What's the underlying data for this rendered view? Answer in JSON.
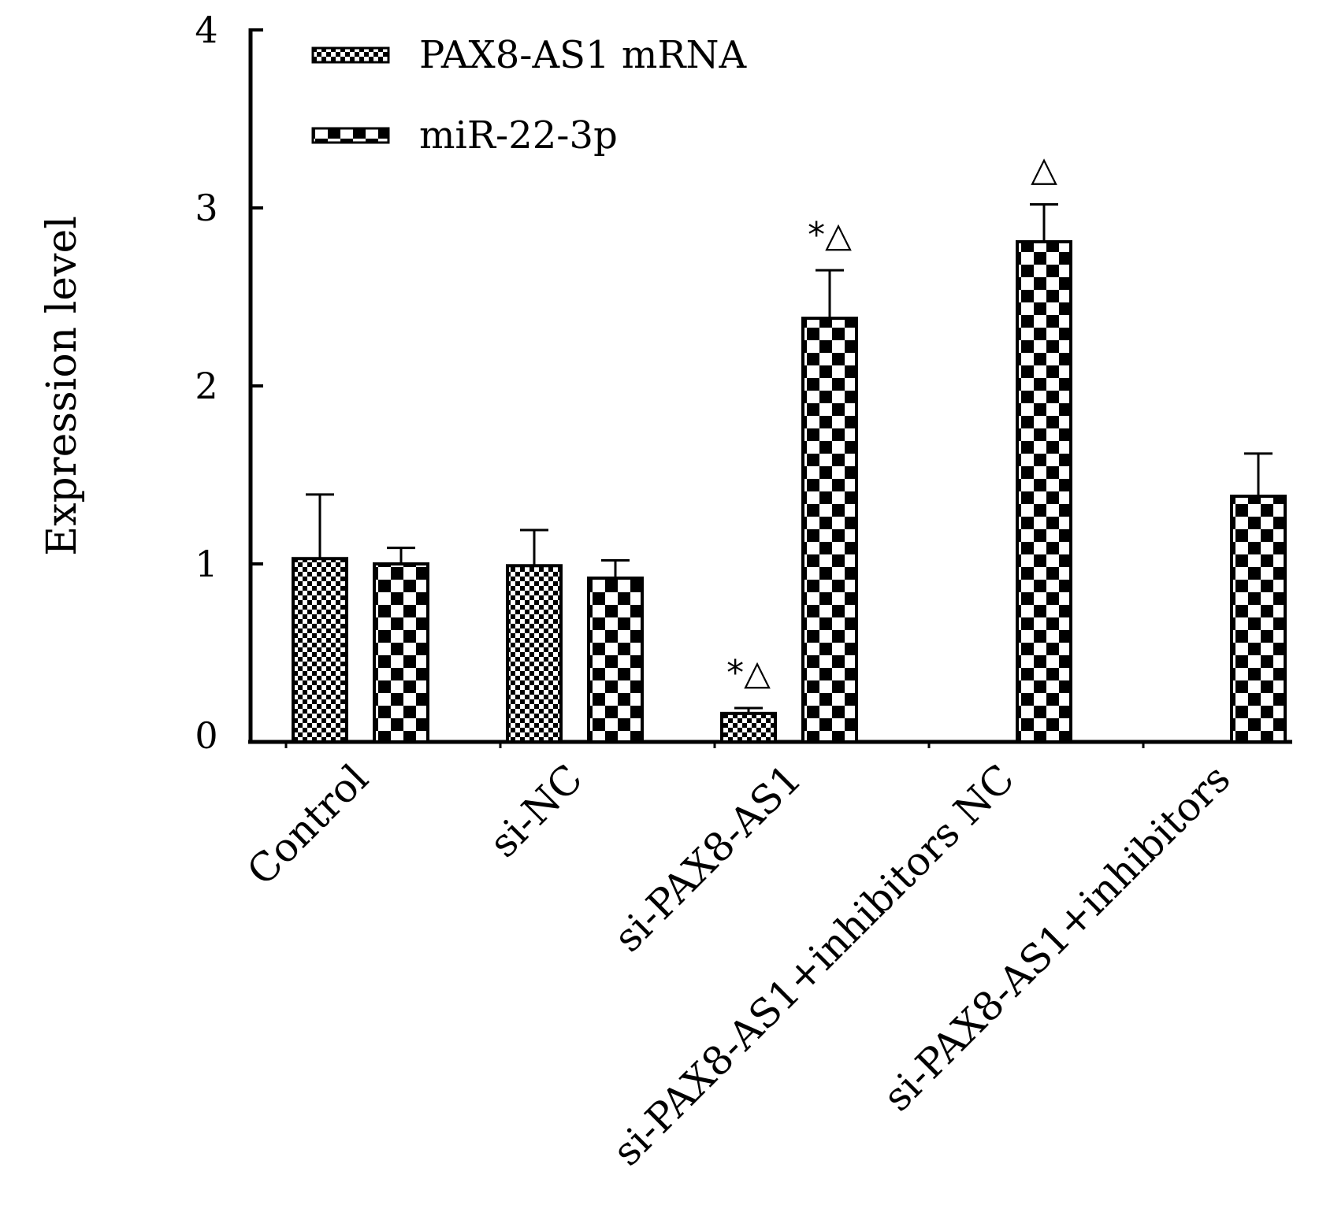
{
  "chart_data": {
    "type": "bar",
    "ylabel": "Expression level",
    "ylim": [
      0,
      4
    ],
    "yticks": [
      "0",
      "1",
      "2",
      "3",
      "4"
    ],
    "categories": [
      "Control",
      "si-NC",
      "si-PAX8-AS1",
      "si-PAX8-AS1+inhibitors NC",
      "si-PAX8-AS1+inhibitors"
    ],
    "legend_position": "top-left",
    "series": [
      {
        "name": "PAX8-AS1 mRNA",
        "pattern": "fine-checker",
        "values": [
          1.03,
          0.99,
          0.16,
          null,
          null
        ],
        "errors": [
          0.36,
          0.2,
          0.03,
          null,
          null
        ]
      },
      {
        "name": "miR-22-3p",
        "pattern": "coarse-checker",
        "values": [
          1.0,
          0.92,
          2.38,
          2.81,
          1.38
        ],
        "errors": [
          0.09,
          0.1,
          0.27,
          0.21,
          0.24
        ]
      }
    ],
    "annotations": [
      {
        "text": "*△",
        "category": 2,
        "series": 0
      },
      {
        "text": "*△",
        "category": 2,
        "series": 1
      },
      {
        "text": "△",
        "category": 3,
        "series": 1
      }
    ]
  }
}
